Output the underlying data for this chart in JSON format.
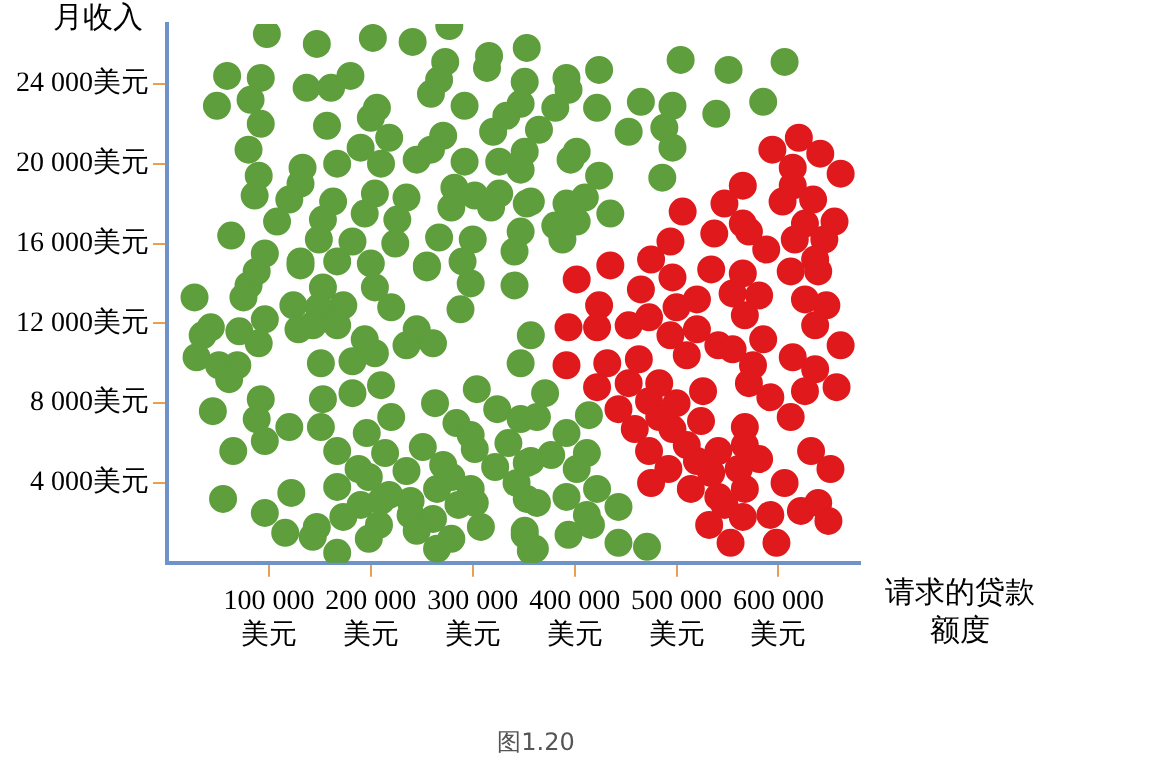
{
  "chart_data": {
    "type": "scatter",
    "xlabel": "请求的贷款额度",
    "ylabel": "月收入",
    "annotations": [
      "图1.20"
    ],
    "xlim": [
      0,
      680000
    ],
    "ylim": [
      0,
      27000
    ],
    "xticks": [
      {
        "value": 100000,
        "label": "100 000\n美元"
      },
      {
        "value": 200000,
        "label": "200 000\n美元"
      },
      {
        "value": 300000,
        "label": "300 000\n美元"
      },
      {
        "value": 400000,
        "label": "400 000\n美元"
      },
      {
        "value": 500000,
        "label": "500 000\n美元"
      },
      {
        "value": 600000,
        "label": "600 000\n美元"
      }
    ],
    "yticks": [
      {
        "value": 4000,
        "label": "4 000美元"
      },
      {
        "value": 8000,
        "label": "8 000美元"
      },
      {
        "value": 12000,
        "label": "12 000美元"
      },
      {
        "value": 16000,
        "label": "16 000美元"
      },
      {
        "value": 20000,
        "label": "20 000美元"
      },
      {
        "value": 24000,
        "label": "24 000美元"
      }
    ],
    "grid": false,
    "legend": false,
    "marker": "circle",
    "series": [
      {
        "color": "#5e9e3c",
        "x": [
          98000,
          147000,
          202000,
          241000,
          277000,
          353000,
          59000,
          92000,
          49000,
          82000,
          137000,
          161000,
          180000,
          206000,
          200000,
          92000,
          157000,
          218000,
          259000,
          273000,
          267000,
          292000,
          316000,
          314000,
          351000,
          347000,
          333000,
          320000,
          80000,
          190000,
          167000,
          210000,
          245000,
          259000,
          271000,
          292000,
          326000,
          351000,
          90000,
          133000,
          131000,
          86000,
          120000,
          163000,
          204000,
          235000,
          282000,
          302000,
          326000,
          353000,
          108000,
          153000,
          194000,
          226000,
          279000,
          318000,
          347000,
          63000,
          149000,
          182000,
          224000,
          267000,
          300000,
          96000,
          131000,
          167000,
          200000,
          255000,
          290000,
          341000,
          27000,
          80000,
          75000,
          88000,
          131000,
          153000,
          204000,
          255000,
          298000,
          341000,
          124000,
          149000,
          173000,
          220000,
          288000,
          43000,
          35000,
          71000,
          96000,
          129000,
          143000,
          167000,
          194000,
          245000,
          261000,
          357000,
          29000,
          51000,
          69000,
          90000,
          151000,
          182000,
          204000,
          235000,
          61000,
          347000,
          210000,
          92000,
          153000,
          182000,
          263000,
          304000,
          324000,
          347000,
          45000,
          88000,
          120000,
          151000,
          220000,
          284000,
          196000,
          298000,
          302000,
          335000,
          65000,
          96000,
          167000,
          214000,
          251000,
          188000,
          235000,
          271000,
          279000,
          322000,
          353000,
          167000,
          198000,
          218000,
          265000,
          298000,
          343000,
          55000,
          122000,
          190000,
          210000,
          239000,
          286000,
          302000,
          353000,
          96000,
          239000,
          173000,
          261000,
          116000,
          143000,
          147000,
          208000,
          245000,
          279000,
          308000,
          351000,
          167000,
          198000,
          265000,
          357000,
          504000,
          551000,
          606000,
          424000,
          392000,
          394000,
          381000,
          422000,
          465000,
          496000,
          539000,
          585000,
          365000,
          453000,
          488000,
          496000,
          402000,
          396000,
          347000,
          424000,
          486000,
          357000,
          392000,
          410000,
          435000,
          402000,
          381000,
          388000,
          371000,
          363000,
          392000,
          414000,
          412000,
          377000,
          357000,
          402000,
          422000,
          392000,
          363000,
          443000,
          412000,
          351000,
          394000,
          416000,
          443000,
          471000,
          361000
        ],
        "values": [
          26500,
          26000,
          26300,
          26100,
          26900,
          25800,
          24400,
          24300,
          22900,
          23200,
          23800,
          23800,
          24400,
          22800,
          22300,
          22000,
          21900,
          21300,
          23500,
          25100,
          24200,
          22900,
          25400,
          24800,
          24100,
          23000,
          22400,
          21600,
          20700,
          20800,
          20000,
          20000,
          20200,
          20700,
          21400,
          20100,
          20100,
          20600,
          19400,
          19800,
          19000,
          18400,
          18200,
          18100,
          18500,
          18300,
          18800,
          18400,
          18500,
          18000,
          17100,
          17200,
          17500,
          17200,
          17800,
          17800,
          16600,
          16400,
          16200,
          16100,
          16000,
          16300,
          16200,
          15500,
          15100,
          15100,
          15000,
          14900,
          15100,
          15600,
          13300,
          13900,
          13300,
          14600,
          14900,
          13800,
          13800,
          14800,
          14000,
          13900,
          12900,
          12800,
          12900,
          12800,
          12700,
          11800,
          11400,
          11600,
          12200,
          11700,
          11900,
          11900,
          11200,
          11700,
          11000,
          11400,
          10300,
          9900,
          9900,
          11000,
          10000,
          10100,
          10500,
          10900,
          9200,
          10000,
          8900,
          8200,
          8200,
          8500,
          8000,
          8700,
          7700,
          7200,
          7600,
          7200,
          6800,
          6800,
          7300,
          7000,
          6500,
          6400,
          5700,
          6000,
          5600,
          6100,
          5600,
          5500,
          5800,
          4700,
          4600,
          4900,
          4300,
          4800,
          5000,
          3800,
          4300,
          3400,
          3700,
          3700,
          4000,
          3200,
          3500,
          2900,
          3100,
          3100,
          2900,
          3000,
          3200,
          2500,
          2400,
          2300,
          2200,
          1500,
          1300,
          1800,
          1900,
          1600,
          1200,
          1800,
          1400,
          500,
          1200,
          700,
          600,
          25200,
          24700,
          25100,
          24700,
          24300,
          23700,
          22800,
          22800,
          23100,
          22900,
          22500,
          23100,
          21700,
          21600,
          21800,
          20800,
          20600,
          20200,
          19700,
          19400,
          19300,
          18100,
          18000,
          18300,
          17500,
          17100,
          16900,
          16200,
          8500,
          7300,
          6500,
          7400,
          5500,
          5400,
          5100,
          4700,
          3700,
          3300,
          3000,
          2800,
          2400,
          1600,
          1400,
          1900,
          1000,
          800,
          700
        ]
      },
      {
        "color": "#e0191c",
        "x": [
          620000,
          594000,
          641000,
          661000,
          614000,
          614000,
          565000,
          634000,
          604000,
          547000,
          506000,
          655000,
          626000,
          565000,
          571000,
          537000,
          494000,
          616000,
          645000,
          588000,
          636000,
          475000,
          435000,
          402000,
          496000,
          534000,
          565000,
          612000,
          465000,
          639000,
          424000,
          500000,
          520000,
          555000,
          581000,
          626000,
          647000,
          394000,
          422000,
          453000,
          473000,
          494000,
          520000,
          541000,
          567000,
          585000,
          636000,
          661000,
          392000,
          432000,
          463000,
          510000,
          555000,
          575000,
          614000,
          636000,
          422000,
          453000,
          483000,
          526000,
          571000,
          626000,
          657000,
          443000,
          473000,
          500000,
          592000,
          612000,
          459000,
          483000,
          496000,
          524000,
          567000,
          473000,
          510000,
          541000,
          567000,
          581000,
          632000,
          475000,
          492000,
          520000,
          534000,
          561000,
          514000,
          541000,
          567000,
          606000,
          651000,
          547000,
          592000,
          622000,
          639000,
          649000,
          532000,
          565000,
          553000,
          598000
        ],
        "values": [
          21300,
          20700,
          20500,
          19500,
          19800,
          18900,
          18900,
          18200,
          18100,
          18000,
          17600,
          17100,
          17000,
          17000,
          16600,
          16500,
          16100,
          16200,
          16200,
          15700,
          15200,
          15200,
          14900,
          14200,
          14300,
          14700,
          14500,
          14600,
          13700,
          14600,
          12900,
          12800,
          13200,
          13500,
          13400,
          13200,
          12900,
          11800,
          11800,
          11900,
          12300,
          11400,
          11700,
          10900,
          12400,
          11200,
          11900,
          10900,
          9900,
          10000,
          10200,
          10400,
          10700,
          9900,
          10300,
          9700,
          8800,
          9000,
          9000,
          8600,
          9000,
          8600,
          8800,
          7700,
          8100,
          8000,
          8300,
          7300,
          6700,
          7300,
          6700,
          7100,
          6800,
          5600,
          5900,
          5600,
          5900,
          5200,
          5600,
          4000,
          4700,
          5100,
          4500,
          4700,
          3700,
          3300,
          3700,
          4000,
          4700,
          2900,
          2400,
          2600,
          3000,
          2100,
          1900,
          2300,
          1000,
          1000
        ]
      }
    ]
  }
}
